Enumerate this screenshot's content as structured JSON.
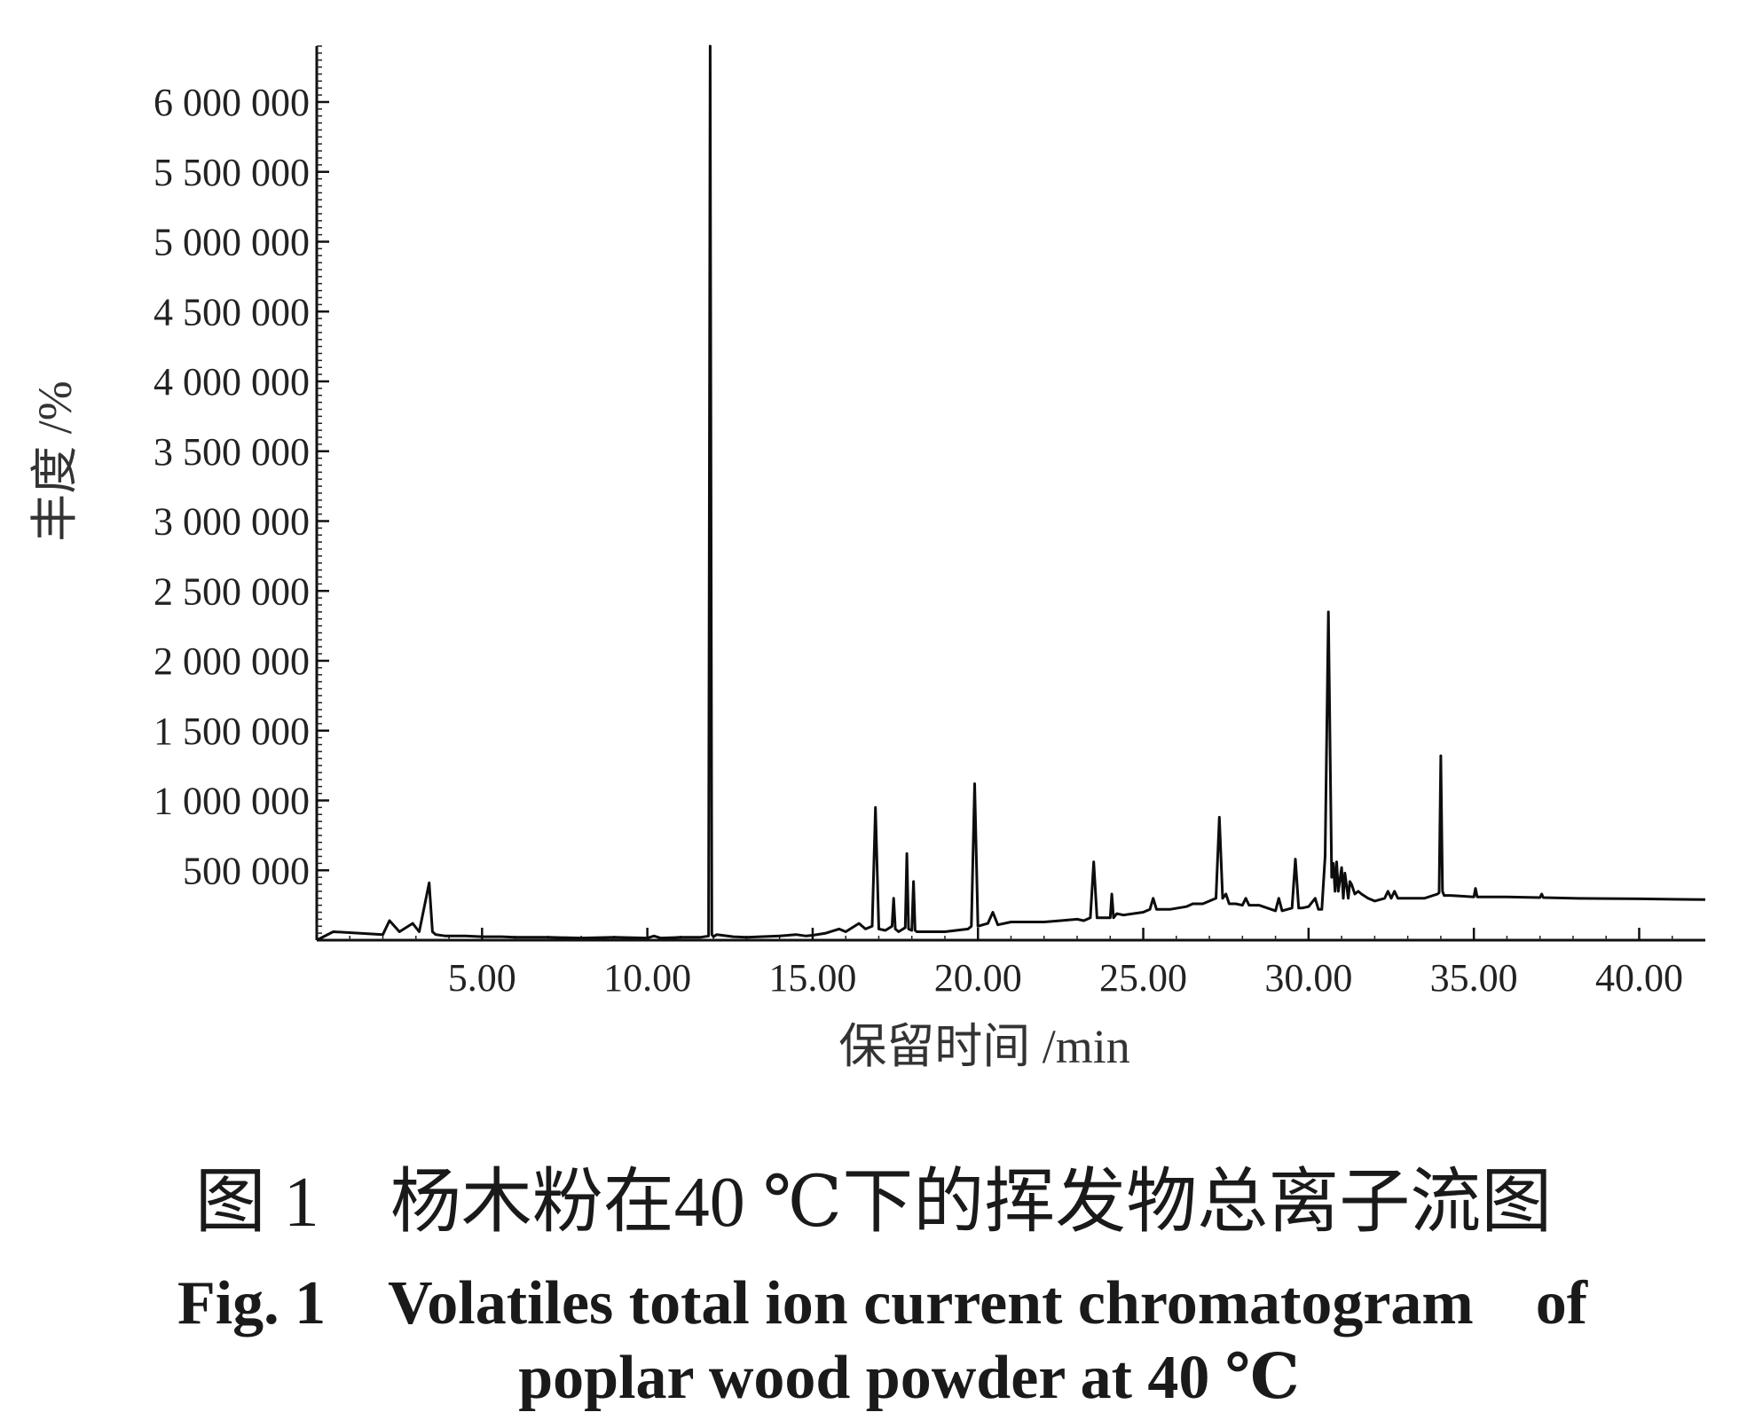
{
  "chart_data": {
    "type": "line",
    "xlabel": "保留时间 /min",
    "ylabel": "丰度 /%",
    "xlim": [
      0,
      42
    ],
    "ylim": [
      0,
      6400000
    ],
    "xticks": [
      5,
      10,
      15,
      20,
      25,
      30,
      35,
      40
    ],
    "xtick_labels": [
      "5.00",
      "10.00",
      "15.00",
      "20.00",
      "25.00",
      "30.00",
      "35.00",
      "40.00"
    ],
    "yticks": [
      500000,
      1000000,
      1500000,
      2000000,
      2500000,
      3000000,
      3500000,
      4000000,
      4500000,
      5000000,
      5500000,
      6000000
    ],
    "ytick_labels": [
      "500 000",
      "1 000 000",
      "1 500 000",
      "2 000 000",
      "2 500 000",
      "3 000 000",
      "3 500 000",
      "4 000 000",
      "4 500 000",
      "5 000 000",
      "5 500 000",
      "6 000 000"
    ],
    "grid": false,
    "series": [
      {
        "x": [
          0.0,
          0.5,
          2.0,
          2.2,
          2.5,
          2.9,
          3.1,
          3.4,
          3.5,
          3.6,
          3.9,
          4.5,
          5.0,
          5.4,
          5.6,
          6.0,
          7.0,
          8.0,
          9.0,
          10.0,
          10.2,
          10.4,
          11.0,
          11.6,
          11.85,
          11.9,
          11.95,
          12.0,
          12.1,
          12.6,
          13.0,
          14.0,
          14.5,
          14.8,
          15.0,
          15.4,
          15.8,
          16.0,
          16.4,
          16.6,
          16.8,
          16.9,
          17.0,
          17.2,
          17.4,
          17.45,
          17.5,
          17.6,
          17.8,
          17.85,
          17.9,
          18.0,
          18.05,
          18.1,
          18.15,
          18.3,
          18.5,
          19.0,
          19.7,
          19.8,
          19.9,
          20.0,
          20.3,
          20.45,
          20.6,
          21.0,
          21.5,
          22.0,
          22.5,
          23.0,
          23.2,
          23.4,
          23.5,
          23.6,
          23.8,
          24.0,
          24.05,
          24.1,
          24.2,
          24.4,
          25.0,
          25.2,
          25.3,
          25.4,
          25.8,
          26.3,
          26.5,
          26.8,
          27.0,
          27.2,
          27.3,
          27.4,
          27.5,
          27.6,
          27.8,
          28.0,
          28.1,
          28.2,
          28.5,
          29.0,
          29.1,
          29.2,
          29.5,
          29.6,
          29.7,
          29.8,
          30.0,
          30.2,
          30.3,
          30.4,
          30.5,
          30.6,
          30.7,
          30.75,
          30.8,
          30.85,
          30.9,
          31.0,
          31.05,
          31.1,
          31.2,
          31.25,
          31.3,
          31.4,
          31.5,
          31.6,
          31.8,
          32.0,
          32.3,
          32.4,
          32.5,
          32.6,
          32.7,
          33.0,
          33.5,
          33.9,
          33.95,
          34.0,
          34.05,
          34.1,
          34.3,
          35.0,
          35.05,
          35.1,
          35.5,
          36.0,
          37.0,
          37.05,
          37.1,
          38.0,
          39.0,
          40.0,
          41.0,
          42.0
        ],
        "y": [
          0,
          60000,
          40000,
          140000,
          60000,
          120000,
          60000,
          410000,
          60000,
          40000,
          30000,
          30000,
          25000,
          25000,
          25000,
          20000,
          20000,
          15000,
          20000,
          15000,
          30000,
          15000,
          20000,
          20000,
          30000,
          6400000,
          40000,
          25000,
          40000,
          25000,
          20000,
          30000,
          40000,
          30000,
          35000,
          50000,
          80000,
          60000,
          120000,
          80000,
          100000,
          950000,
          80000,
          70000,
          100000,
          300000,
          80000,
          60000,
          90000,
          620000,
          80000,
          70000,
          420000,
          70000,
          60000,
          60000,
          60000,
          60000,
          80000,
          100000,
          1120000,
          100000,
          120000,
          200000,
          110000,
          130000,
          130000,
          130000,
          140000,
          150000,
          140000,
          160000,
          560000,
          160000,
          160000,
          160000,
          330000,
          160000,
          190000,
          180000,
          200000,
          220000,
          300000,
          220000,
          220000,
          240000,
          260000,
          260000,
          280000,
          300000,
          880000,
          300000,
          330000,
          260000,
          260000,
          250000,
          300000,
          250000,
          250000,
          210000,
          300000,
          210000,
          230000,
          580000,
          230000,
          230000,
          240000,
          300000,
          220000,
          220000,
          600000,
          2350000,
          450000,
          550000,
          350000,
          560000,
          350000,
          520000,
          300000,
          480000,
          300000,
          420000,
          400000,
          330000,
          350000,
          330000,
          300000,
          280000,
          300000,
          350000,
          300000,
          350000,
          300000,
          300000,
          300000,
          330000,
          340000,
          1320000,
          350000,
          320000,
          320000,
          310000,
          370000,
          310000,
          310000,
          310000,
          305000,
          330000,
          305000,
          300000,
          298000,
          296000,
          293000,
          290000
        ]
      }
    ]
  },
  "caption": {
    "cn": "图 1　杨木粉在40 ℃下的挥发物总离子流图",
    "en_line1": "Fig. 1　Volatiles total ion current chromatogram　of",
    "en_line2": "poplar wood powder at 40 ℃"
  }
}
